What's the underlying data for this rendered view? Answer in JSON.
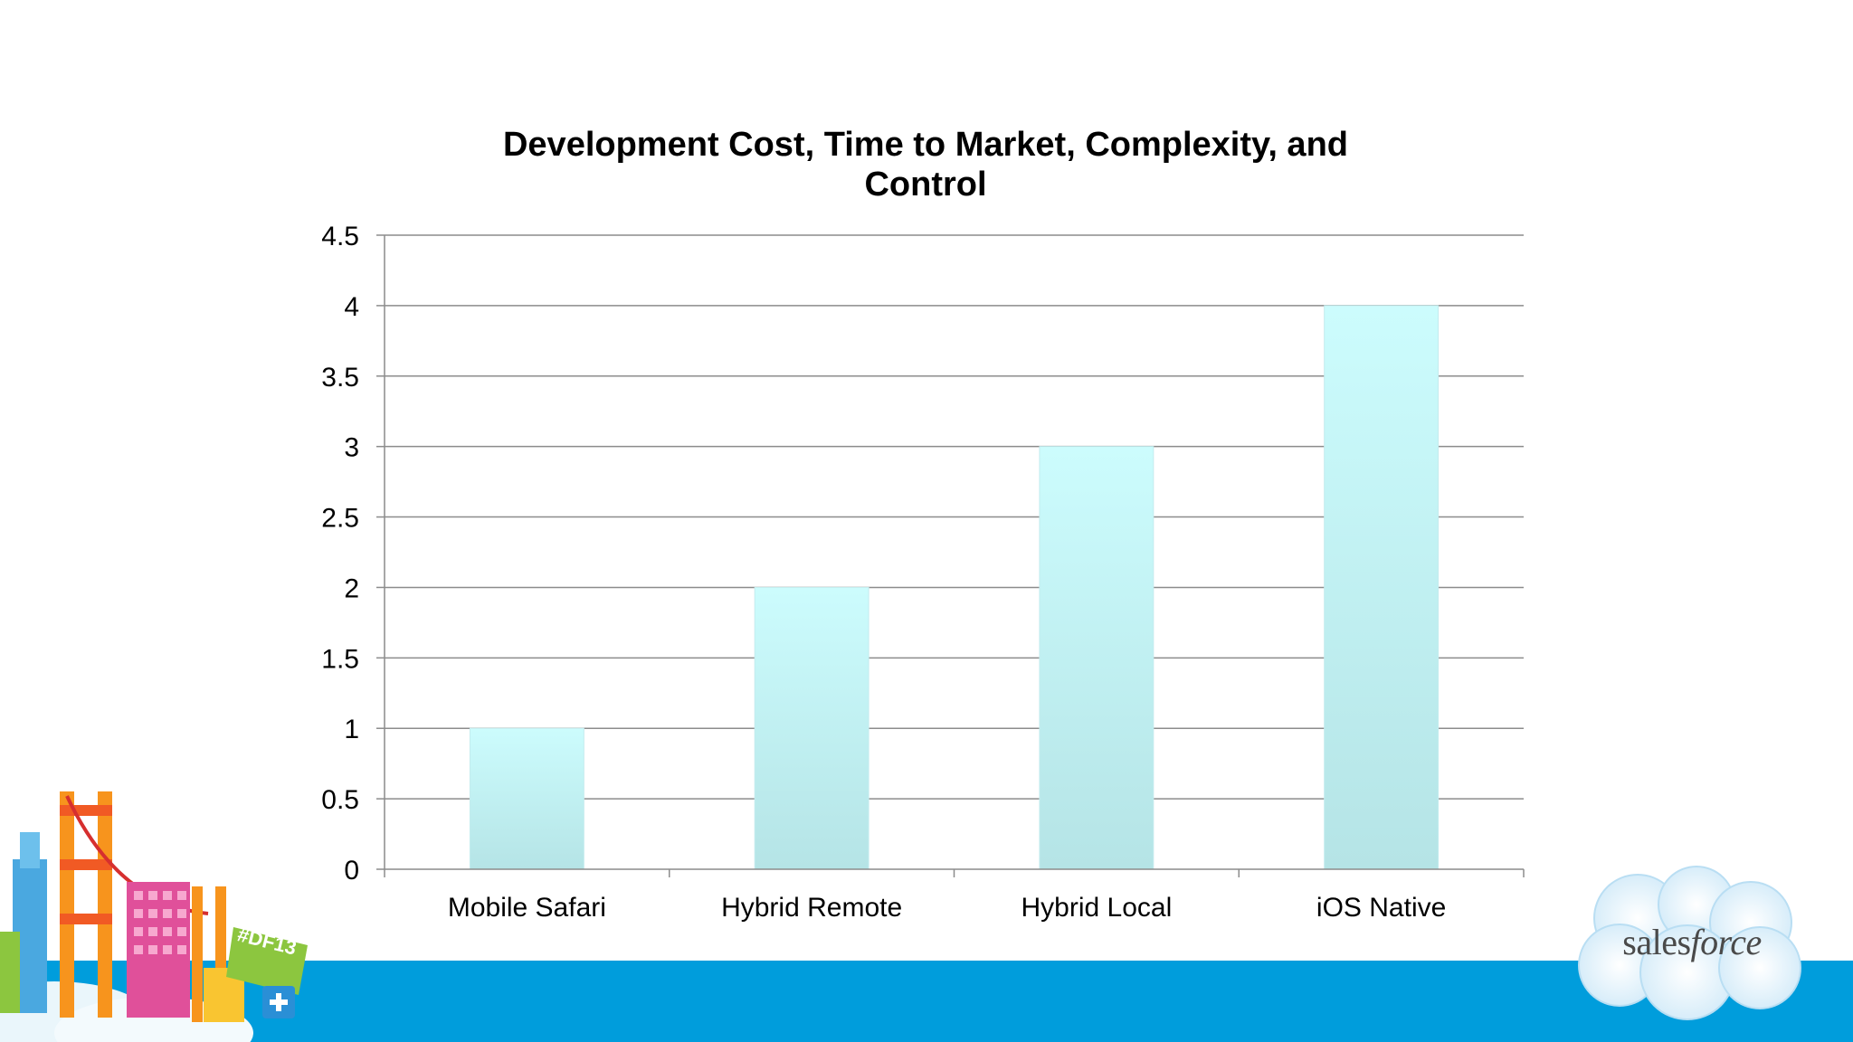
{
  "chart_data": {
    "type": "bar",
    "title_lines": [
      "Development Cost, Time to Market, Complexity, and",
      "Control"
    ],
    "categories": [
      "Mobile Safari",
      "Hybrid Remote",
      "Hybrid Local",
      "iOS Native"
    ],
    "values": [
      1,
      2,
      3,
      4
    ],
    "ylim": [
      0,
      4.5
    ],
    "yticks": [
      "0",
      "0.5",
      "1",
      "1.5",
      "2",
      "2.5",
      "3",
      "3.5",
      "4",
      "4.5"
    ],
    "xlabel": "",
    "ylabel": "",
    "grid": true,
    "legend": "none",
    "bar_color_top": "#ccfcfd",
    "bar_color_bottom": "#b5e4e6"
  },
  "branding": {
    "logo_a": "sales",
    "logo_b": "force",
    "tag": "#DF13",
    "band_color": "#009ddc"
  }
}
